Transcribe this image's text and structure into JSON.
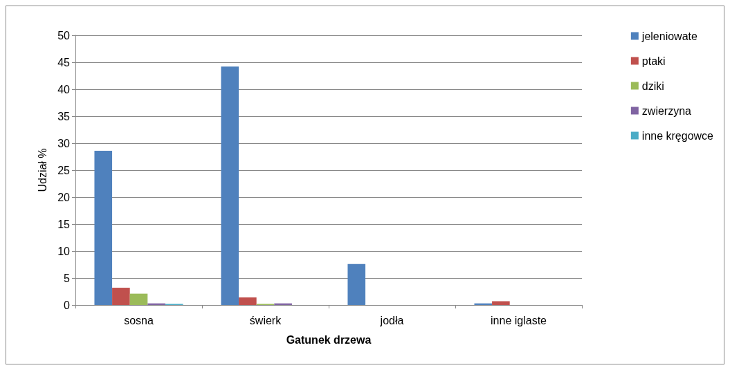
{
  "chart_data": {
    "type": "bar",
    "xlabel": "Gatunek drzewa",
    "ylabel": "Udział %",
    "categories": [
      "sosna",
      "świerk",
      "jodła",
      "inne iglaste"
    ],
    "series": [
      {
        "name": "jeleniowate",
        "color": "#4f81bd",
        "values": [
          28.6,
          44.2,
          7.6,
          0.3
        ]
      },
      {
        "name": "ptaki",
        "color": "#c0504d",
        "values": [
          3.2,
          1.4,
          0,
          0.7
        ]
      },
      {
        "name": "dziki",
        "color": "#9bbb59",
        "values": [
          2.1,
          0.2,
          0,
          0
        ]
      },
      {
        "name": "zwierzyna",
        "color": "#8064a2",
        "values": [
          0.3,
          0.3,
          0,
          0
        ]
      },
      {
        "name": "inne kręgowce",
        "color": "#4bacc6",
        "values": [
          0.2,
          0,
          0,
          0
        ]
      }
    ],
    "ylim": [
      0,
      50
    ],
    "yticks": [
      0,
      5,
      10,
      15,
      20,
      25,
      30,
      35,
      40,
      45,
      50
    ],
    "grid": "y",
    "legend": "right"
  }
}
